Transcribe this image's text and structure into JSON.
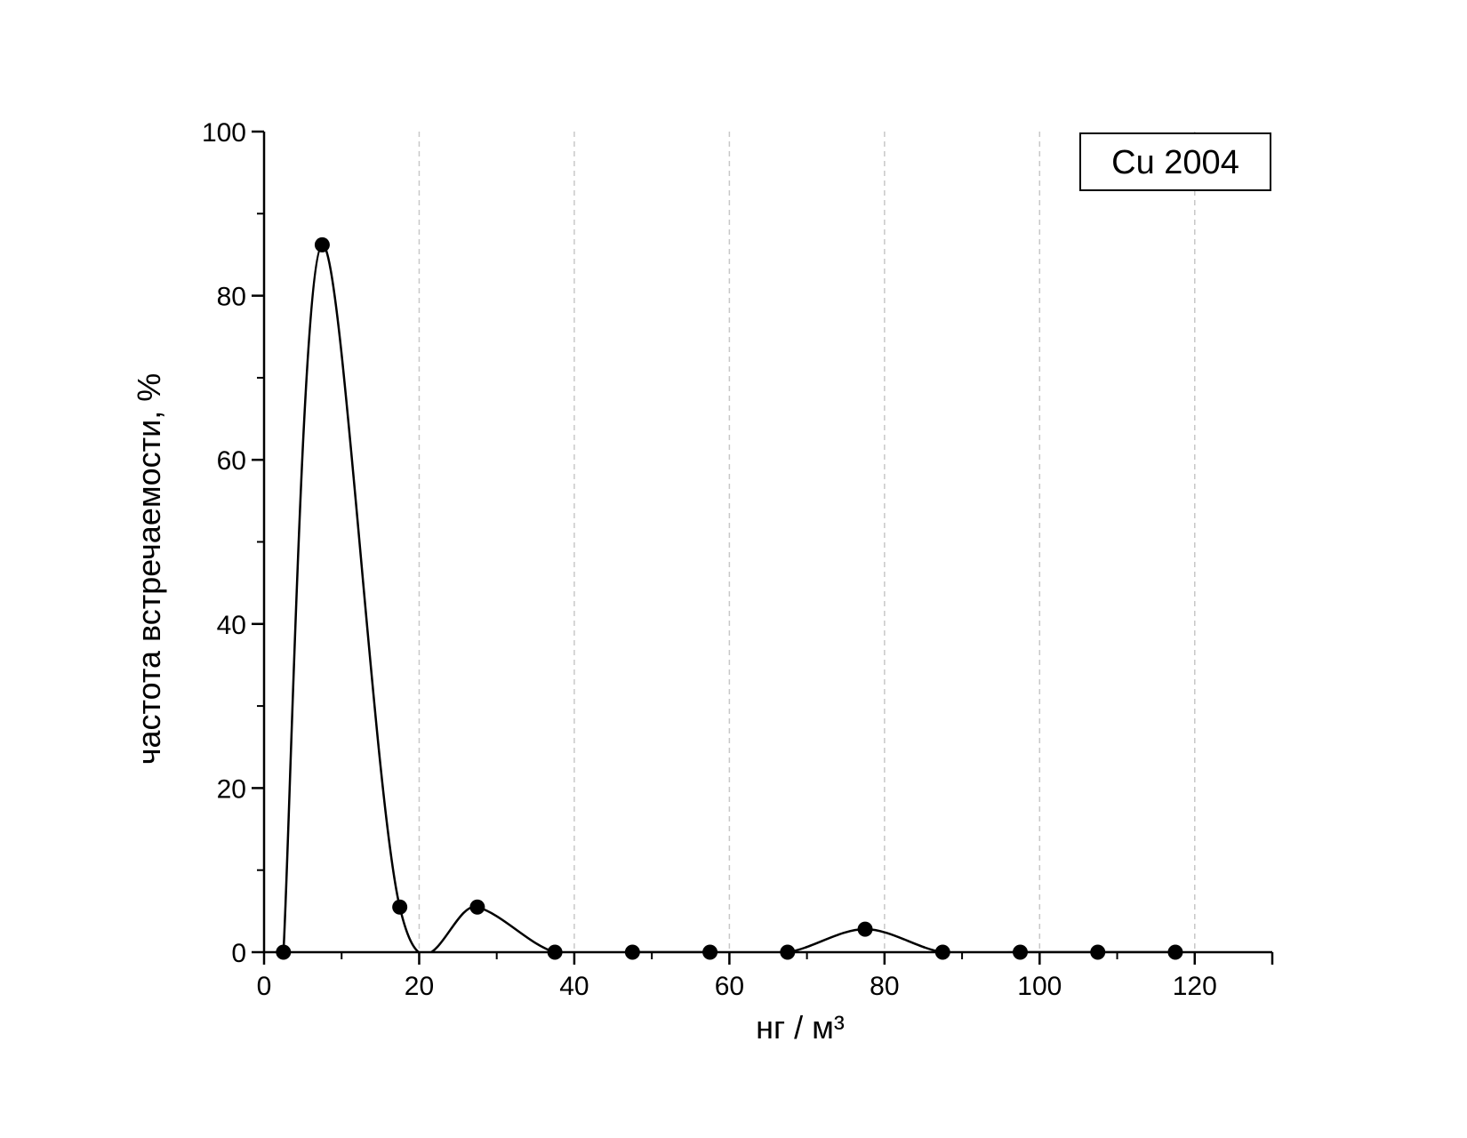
{
  "chart_data": {
    "type": "scatter",
    "curve": "spline",
    "xlabel": "нг / м³",
    "ylabel": "частота встречаемости, %",
    "x": [
      2.5,
      7.5,
      17.5,
      27.5,
      37.5,
      47.5,
      57.5,
      67.5,
      77.5,
      87.5,
      97.5,
      107.5,
      117.5
    ],
    "series": [
      {
        "name": "Cu 2004",
        "color": "#000000",
        "values": [
          0,
          86.2,
          5.5,
          5.5,
          0,
          0,
          0,
          0,
          2.8,
          0,
          0,
          0,
          0
        ]
      }
    ],
    "xlim": [
      0,
      130
    ],
    "xticks": [
      0,
      20,
      40,
      60,
      80,
      100,
      120
    ],
    "ylim": [
      0,
      100
    ],
    "yticks": [
      0,
      20,
      40,
      60,
      80,
      100
    ],
    "grid": true,
    "legend": "upper right"
  }
}
